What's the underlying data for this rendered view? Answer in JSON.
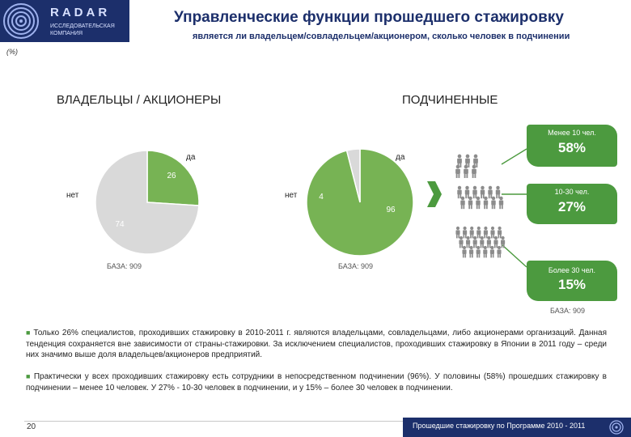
{
  "header": {
    "logo_name": "RADAR",
    "logo_sub_line1": "ИССЛЕДОВАТЕЛЬСКАЯ",
    "logo_sub_line2": "КОМПАНИЯ",
    "title": "Управленческие функции прошедшего стажировку",
    "subtitle": "является ли владельцем/совладельцем/акционером, сколько человек в подчинении",
    "unit": "(%)"
  },
  "sections": {
    "owners": "ВЛАДЕЛЬЦЫ / АКЦИОНЕРЫ",
    "subordinates": "ПОДЧИНЕННЫЕ"
  },
  "chart_data": [
    {
      "type": "pie",
      "title": "ВЛАДЕЛЬЦЫ / АКЦИОНЕРЫ",
      "slices": [
        {
          "label": "да",
          "value": 26,
          "color": "#77b354"
        },
        {
          "label": "нет",
          "value": 74,
          "color": "#d9d9d9"
        }
      ],
      "base": "БАЗА: 909"
    },
    {
      "type": "pie",
      "title": "ПОДЧИНЕННЫЕ",
      "slices": [
        {
          "label": "да",
          "value": 96,
          "color": "#77b354"
        },
        {
          "label": "нет",
          "value": 4,
          "color": "#d9d9d9"
        }
      ],
      "base": "БАЗА: 909"
    }
  ],
  "breakdown": {
    "items": [
      {
        "label": "Менее 10 чел.",
        "value": "58%"
      },
      {
        "label": "10-30 чел.",
        "value": "27%"
      },
      {
        "label": "Более 30 чел.",
        "value": "15%"
      }
    ],
    "base": "БАЗА: 909"
  },
  "colors": {
    "accent": "#4c9a3f",
    "pie_green": "#77b354",
    "pie_gray": "#d9d9d9",
    "navy": "#1c2f6b",
    "people": "#8c8c8c"
  },
  "icons": [
    "people-group-small-icon",
    "people-group-medium-icon",
    "people-group-large-icon",
    "chevron-right-icon"
  ],
  "notes": [
    "Только 26% специалистов, проходивших стажировку в 2010-2011 г. являются владельцами, совладельцами, либо акционерами организаций. Данная тенденция сохраняется вне зависимости от страны-стажировки. За исключением специалистов, проходивших стажировку в Японии в 2011 году – среди них значимо выше доля владельцев/акционеров предприятий.",
    "Практически у всех проходивших стажировку есть сотрудники в непосредственном подчинении (96%). У половины (58%) прошедших стажировку в подчинении – менее 10 человек. У 27% - 10-30 человек в подчинении, и у 15% – более 30 человек в подчинении."
  ],
  "footer": {
    "page_number": "20",
    "text": "Прошедшие стажировку по Программе 2010 - 2011"
  }
}
